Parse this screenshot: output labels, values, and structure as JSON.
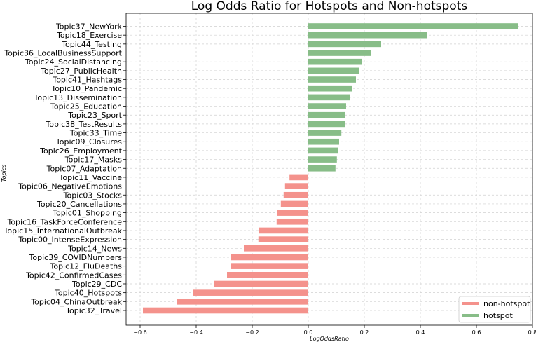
{
  "chart_data": {
    "type": "bar",
    "orientation": "horizontal",
    "title": "Log Odds Ratio for Hotspots and Non-hotspots",
    "xlabel": "LogOddsRatio",
    "ylabel": "Topics",
    "xlim": [
      -0.65,
      0.8
    ],
    "xticks": [
      -0.6,
      -0.4,
      -0.2,
      0.0,
      0.2,
      0.4,
      0.6,
      0.8
    ],
    "xtick_labels": [
      "−0.6",
      "−0.4",
      "−0.2",
      "0.0",
      "0.2",
      "0.4",
      "0.6",
      "0.8"
    ],
    "grid": true,
    "legend_position": "bottom-right",
    "series": [
      {
        "name": "non-hotspot",
        "color": "#f4928c"
      },
      {
        "name": "hotspot",
        "color": "#88bd88"
      }
    ],
    "categories": [
      "Topic37_NewYork",
      "Topic18_Exercise",
      "Topic44_Testing",
      "Topic36_LocalBusinessSupport",
      "Topic24_SocialDistancing",
      "Topic27_PublicHealth",
      "Topic41_Hashtags",
      "Topic10_Pandemic",
      "Topic13_Dissemination",
      "Topic25_Education",
      "Topic23_Sport",
      "Topic38_TestResults",
      "Topic33_Time",
      "Topic09_Closures",
      "Topic26_Employment",
      "Topic17_Masks",
      "Topic07_Adaptation",
      "Topic11_Vaccine",
      "Topic06_NegativeEmotions",
      "Topic03_Stocks",
      "Topic20_Cancellations",
      "Topic01_Shopping",
      "Topic16_TaskForceConference",
      "Topic15_InternationalOutbreak",
      "Topic00_IntenseExpression",
      "Topic14_News",
      "Topic39_COVIDNumbers",
      "Topic12_FluDeaths",
      "Topic42_ConfirmedCases",
      "Topic29_CDC",
      "Topic40_Hotspots",
      "Topic04_ChinaOutbreak",
      "Topic32_Travel"
    ],
    "values": [
      0.75,
      0.425,
      0.26,
      0.225,
      0.19,
      0.182,
      0.17,
      0.155,
      0.15,
      0.135,
      0.132,
      0.13,
      0.118,
      0.11,
      0.105,
      0.102,
      0.097,
      -0.067,
      -0.083,
      -0.088,
      -0.098,
      -0.11,
      -0.113,
      -0.175,
      -0.178,
      -0.23,
      -0.275,
      -0.275,
      -0.29,
      -0.335,
      -0.41,
      -0.47,
      -0.59
    ]
  }
}
